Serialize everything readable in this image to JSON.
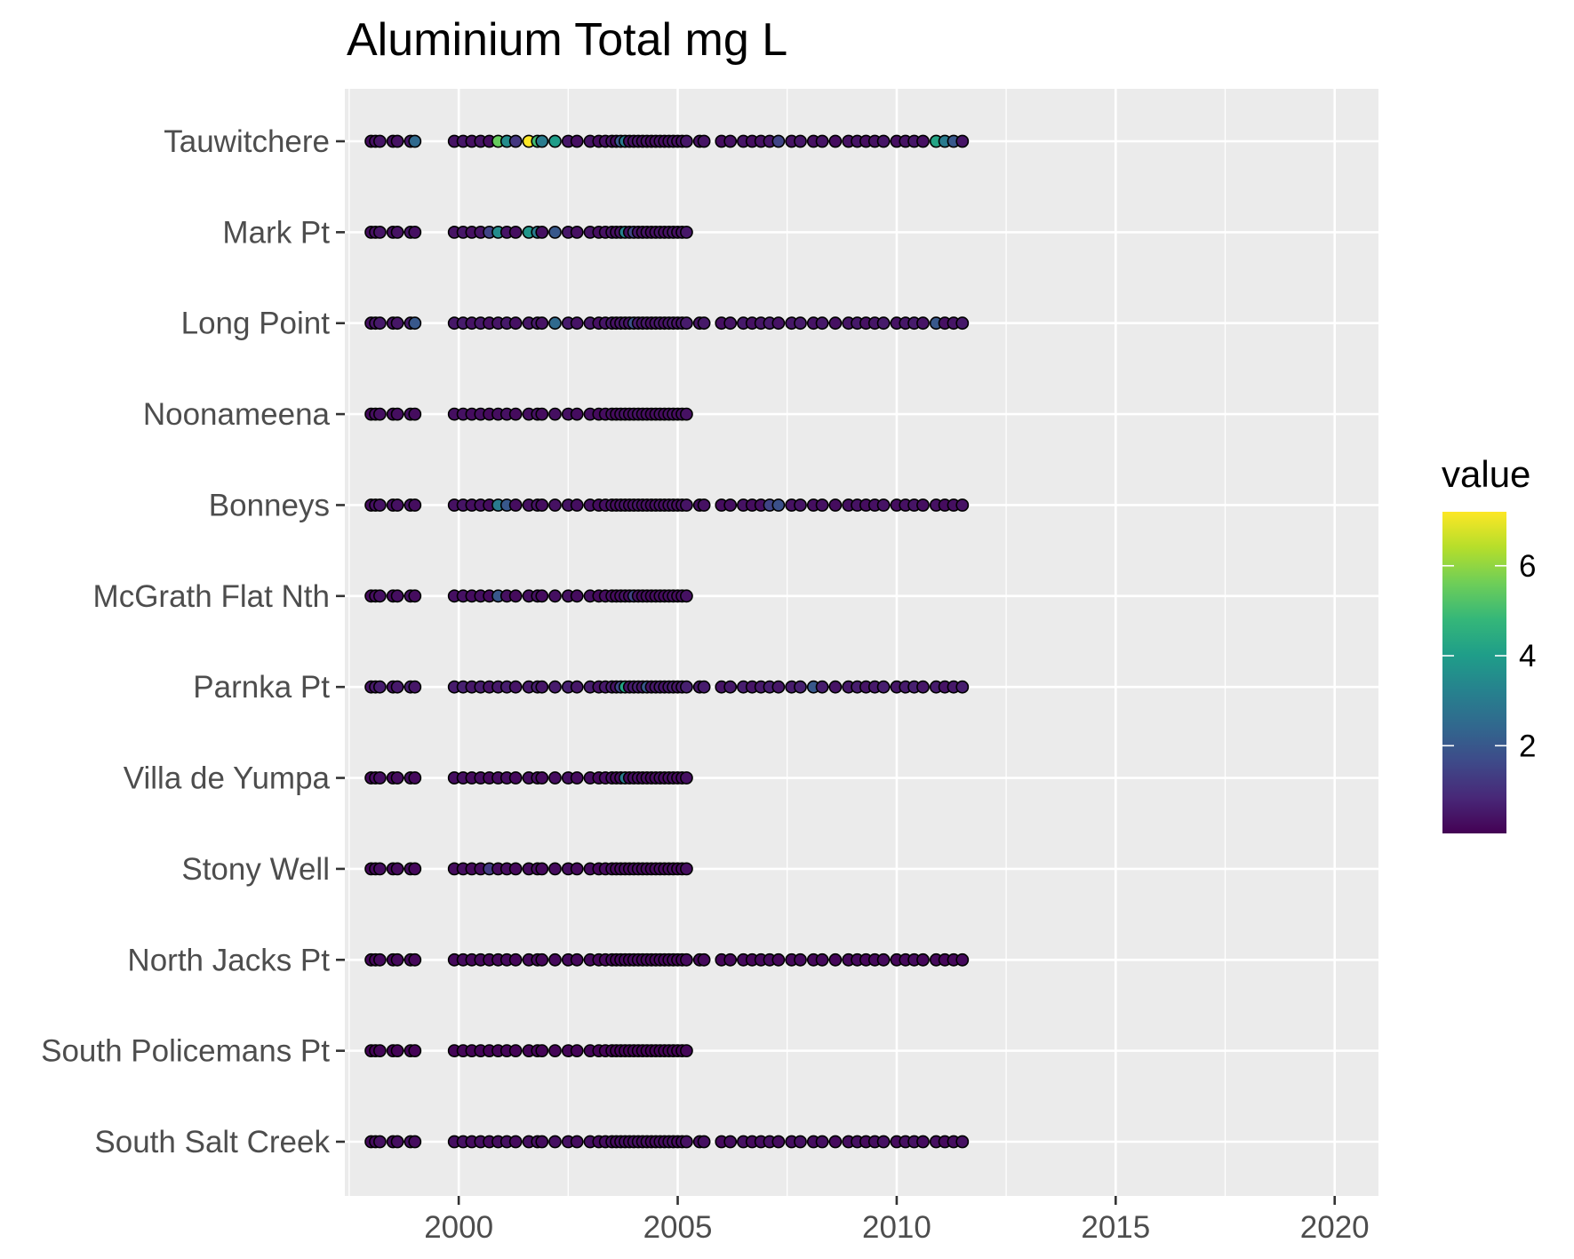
{
  "chart_data": {
    "type": "scatter",
    "title": "Aluminium Total mg L",
    "xlabel": "",
    "ylabel": "",
    "xlim": [
      1997.4,
      2021.0
    ],
    "x_ticks": [
      2000,
      2005,
      2010,
      2015,
      2020
    ],
    "x_minor_ticks": [
      1997.5,
      2002.5,
      2007.5,
      2012.5,
      2017.5
    ],
    "grid": true,
    "panel_background": "#ebebeb",
    "grid_color": "#ffffff",
    "point_outline": "#000000",
    "categories": [
      "Tauwitchere",
      "Mark Pt",
      "Long Point",
      "Noonameena",
      "Bonneys",
      "McGrath Flat Nth",
      "Parnka Pt",
      "Villa de Yumpa",
      "Stony Well",
      "North Jacks Pt",
      "South Policemans Pt",
      "South Salt Creek"
    ],
    "legend": {
      "title": "value",
      "position": "right",
      "range": [
        0.05,
        7.2
      ],
      "ticks": [
        2,
        4,
        6
      ],
      "palette": [
        "#440154",
        "#482878",
        "#3e4a89",
        "#31688e",
        "#26828e",
        "#1f9e89",
        "#35b779",
        "#6ece58",
        "#b5de2b",
        "#fde725"
      ]
    },
    "sample_times": {
      "short": [
        1998.0,
        1998.1,
        1998.2,
        1998.5,
        1998.6,
        1998.9,
        1999.0,
        1999.9,
        2000.1,
        2000.3,
        2000.5,
        2000.7,
        2000.9,
        2001.1,
        2001.3,
        2001.6,
        2001.8,
        2001.9,
        2002.2,
        2002.5,
        2002.7,
        2003.0,
        2003.2,
        2003.35,
        2003.5,
        2003.6,
        2003.7,
        2003.8,
        2003.9,
        2004.0,
        2004.1,
        2004.2,
        2004.3,
        2004.4,
        2004.5,
        2004.6,
        2004.7,
        2004.8,
        2004.9,
        2005.0,
        2005.1,
        2005.2
      ],
      "long_extra": [
        2005.5,
        2005.6,
        2006.0,
        2006.2,
        2006.5,
        2006.7,
        2006.9,
        2007.1,
        2007.3,
        2007.6,
        2007.8,
        2008.1,
        2008.3,
        2008.6,
        2008.9,
        2009.1,
        2009.3,
        2009.5,
        2009.7,
        2010.0,
        2010.2,
        2010.4,
        2010.6,
        2010.9,
        2011.1,
        2011.3,
        2011.5
      ],
      "long_stations": [
        "Tauwitchere",
        "Long Point",
        "Bonneys",
        "Parnka Pt",
        "North Jacks Pt",
        "South Salt Creek"
      ]
    },
    "default_value": 0.3,
    "station_base_values": {
      "Tauwitchere": 0.5,
      "Mark Pt": 0.5,
      "Long Point": 0.6,
      "Noonameena": 0.4,
      "Bonneys": 0.45,
      "McGrath Flat Nth": 0.4,
      "Parnka Pt": 0.7,
      "Villa de Yumpa": 0.35,
      "Stony Well": 0.3,
      "North Jacks Pt": 0.25,
      "South Policemans Pt": 0.15,
      "South Salt Creek": 0.4
    },
    "notable_values": {
      "Tauwitchere": [
        [
          1999.0,
          2.5
        ],
        [
          2000.9,
          5.5
        ],
        [
          2001.1,
          3.5
        ],
        [
          2001.3,
          1.2
        ],
        [
          2001.6,
          7.2
        ],
        [
          2001.8,
          5.0
        ],
        [
          2001.9,
          3.0
        ],
        [
          2002.2,
          4.0
        ],
        [
          2003.7,
          2.0
        ],
        [
          2003.8,
          3.0
        ],
        [
          2007.3,
          1.5
        ],
        [
          2010.9,
          4.2
        ],
        [
          2011.1,
          3.0
        ],
        [
          2011.3,
          2.0
        ]
      ],
      "Mark Pt": [
        [
          2000.7,
          1.5
        ],
        [
          2000.9,
          3.5
        ],
        [
          2001.6,
          3.8
        ],
        [
          2001.8,
          3.0
        ],
        [
          2002.2,
          2.0
        ],
        [
          2003.8,
          3.2
        ],
        [
          2004.0,
          1.5
        ]
      ],
      "Long Point": [
        [
          1999.0,
          2.0
        ],
        [
          2002.2,
          2.5
        ],
        [
          2004.0,
          1.8
        ],
        [
          2010.9,
          2.0
        ]
      ],
      "Bonneys": [
        [
          2000.9,
          3.0
        ],
        [
          2001.1,
          2.0
        ],
        [
          2007.1,
          1.5
        ],
        [
          2007.3,
          1.8
        ]
      ],
      "McGrath Flat Nth": [
        [
          2000.9,
          2.0
        ],
        [
          2004.0,
          1.5
        ]
      ],
      "Parnka Pt": [
        [
          2003.7,
          1.5
        ],
        [
          2003.8,
          4.2
        ],
        [
          2004.3,
          2.0
        ],
        [
          2008.1,
          2.0
        ]
      ],
      "Villa de Yumpa": [
        [
          2003.8,
          3.0
        ]
      ],
      "Stony Well": [
        [
          2000.7,
          1.3
        ]
      ]
    }
  }
}
